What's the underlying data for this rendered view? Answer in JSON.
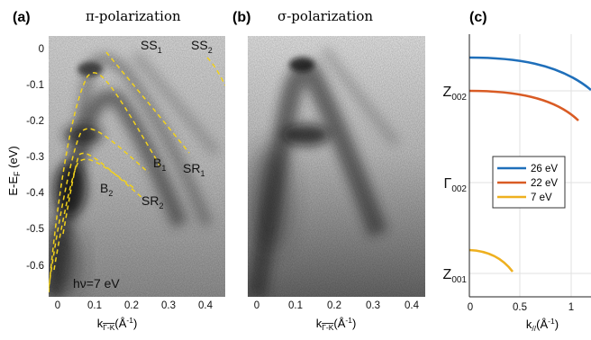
{
  "panel_a": {
    "label": "(a)",
    "title": "π-polarization",
    "ylabel": "E-E",
    "ylabel_sub": "F",
    "ylabel_unit": "(eV)",
    "xlabel_main": "k",
    "xlabel_sub": "Γ-K",
    "xlabel_unit": "(Å",
    "xlabel_exp": "-1",
    "xlabel_close": ")",
    "annotation": "hν=7 eV",
    "band_labels": [
      {
        "base": "SS",
        "sub": "1"
      },
      {
        "base": "SS",
        "sub": "2"
      },
      {
        "base": "B",
        "sub": "1"
      },
      {
        "base": "SR",
        "sub": "1"
      },
      {
        "base": "B",
        "sub": "2"
      },
      {
        "base": "SR",
        "sub": "2"
      }
    ],
    "y_ticks": [
      "0",
      "-0.1",
      "-0.2",
      "-0.3",
      "-0.4",
      "-0.5",
      "-0.6"
    ],
    "x_ticks": [
      "0",
      "0.1",
      "0.2",
      "0.3",
      "0.4"
    ],
    "dashed_color": "#f2d21b"
  },
  "panel_b": {
    "label": "(b)",
    "title": "σ-polarization",
    "xlabel_main": "k",
    "xlabel_sub": "Γ-K",
    "xlabel_unit": "(Å",
    "xlabel_exp": "-1",
    "xlabel_close": ")",
    "x_ticks": [
      "0",
      "0.1",
      "0.2",
      "0.3",
      "0.4"
    ]
  },
  "panel_c": {
    "label": "(c)",
    "y_labels": [
      {
        "base": "Z",
        "sub": "002"
      },
      {
        "base": "Γ",
        "sub": "002"
      },
      {
        "base": "Z",
        "sub": "001"
      }
    ],
    "x_ticks": [
      "0",
      "0.5",
      "1"
    ],
    "xlabel_main": "k",
    "xlabel_sub": "//",
    "xlabel_unit": "(Å",
    "xlabel_exp": "-1",
    "xlabel_close": ")",
    "legend": [
      {
        "name": "26 eV",
        "color": "#1f6fba"
      },
      {
        "name": "22 eV",
        "color": "#d95b24"
      },
      {
        "name": "7 eV",
        "color": "#eeb01f"
      }
    ]
  }
}
